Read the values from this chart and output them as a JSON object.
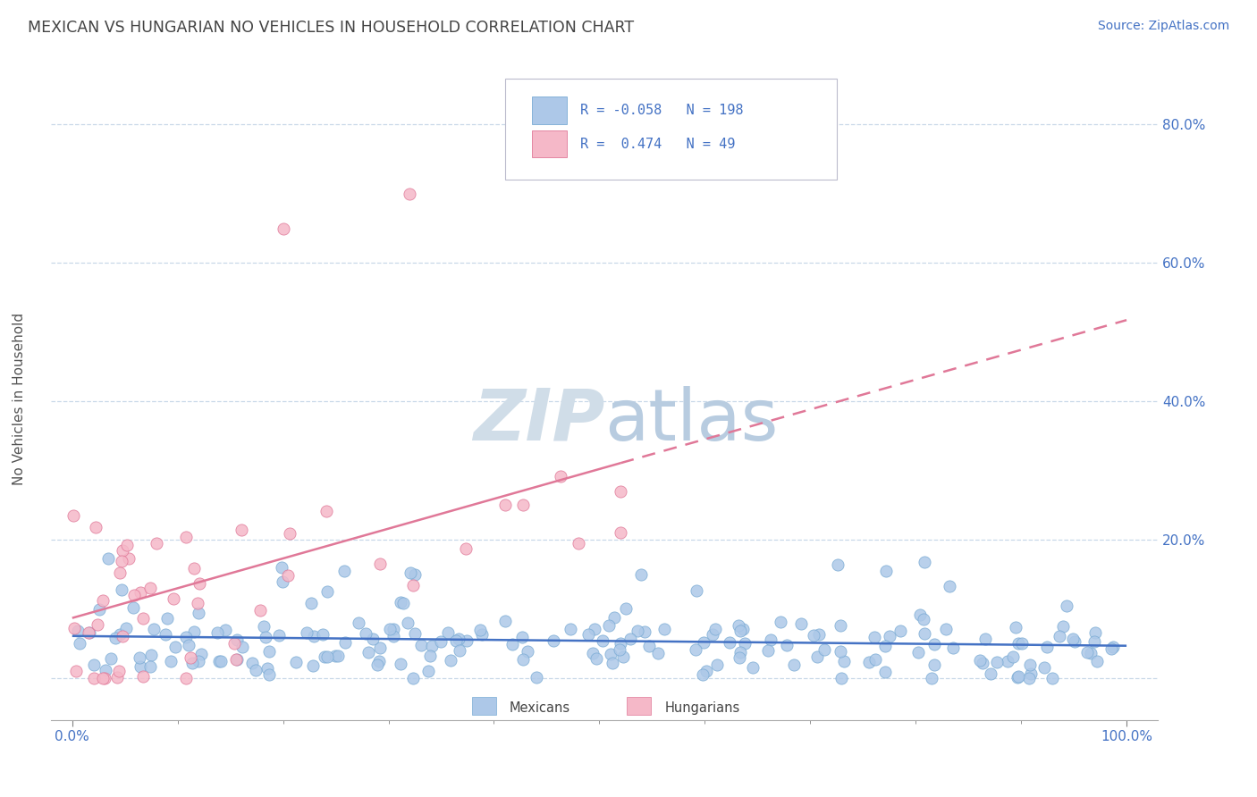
{
  "title": "MEXICAN VS HUNGARIAN NO VEHICLES IN HOUSEHOLD CORRELATION CHART",
  "source_text": "Source: ZipAtlas.com",
  "ylabel": "No Vehicles in Household",
  "ytick_vals": [
    0,
    20,
    40,
    60,
    80
  ],
  "ytick_labels": [
    "",
    "20.0%",
    "40.0%",
    "60.0%",
    "80.0%"
  ],
  "xlim": [
    -2,
    103
  ],
  "ylim": [
    -6,
    88
  ],
  "mexicans_R": -0.058,
  "mexicans_N": 198,
  "hungarians_R": 0.474,
  "hungarians_N": 49,
  "mexicans_color": "#adc8e8",
  "mexicans_edge": "#7aabd4",
  "hungarians_color": "#f5b8c8",
  "hungarians_edge": "#e07898",
  "trend_mexican_color": "#4472c4",
  "trend_hungarian_color": "#e07898",
  "watermark_zip_color": "#c8d8ed",
  "watermark_atlas_color": "#a8c0dd",
  "background_color": "#ffffff",
  "grid_color": "#c8d8e8",
  "tick_color": "#4472c4",
  "title_color": "#444444",
  "source_color": "#4472c4",
  "legend_border_color": "#cccccc",
  "legend_text_color": "#4472c4",
  "seed": 42
}
